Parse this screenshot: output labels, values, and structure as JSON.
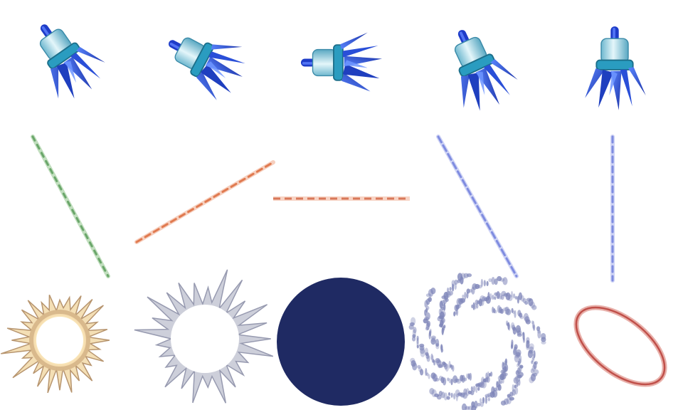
{
  "sprite_sheet": {
    "grid": {
      "columns": 5,
      "rows": 3
    },
    "colors": {
      "background": "#ffffff",
      "blade_dark": "#1f3fbf",
      "blade_light": "#4f7dff",
      "body_light": "#b9e6f0",
      "body_mid": "#7cc8dc",
      "band": "#2a9cc0",
      "ring_dark": "#1c6f8a",
      "nozzle": "#1e3cc8",
      "trail_green": "#8fc48a",
      "trail_orange": "#e07a50",
      "trail_blue": "#7f8ce0",
      "burst_cream": "#fff2c8",
      "burst_tan": "#c8a070",
      "burst_gray": "#a0a4b8",
      "disc_navy": "#1f2a63",
      "dots_blue": "#7d84b8",
      "ring_red": "#c0504a"
    },
    "rows": [
      {
        "name": "projectile-row",
        "cells": [
          {
            "name": "projectile-sprite-tilt-left",
            "rotation_deg": -35
          },
          {
            "name": "projectile-sprite-tilt-down",
            "rotation_deg": -62
          },
          {
            "name": "projectile-sprite-horizontal",
            "rotation_deg": -90
          },
          {
            "name": "projectile-sprite-tilt-right",
            "rotation_deg": -25
          },
          {
            "name": "projectile-sprite-upright",
            "rotation_deg": 0
          }
        ]
      },
      {
        "name": "trail-row",
        "cells": [
          {
            "name": "trail-green-diagonal",
            "color": "trail_green"
          },
          {
            "name": "trail-orange-rising",
            "color": "trail_orange"
          },
          {
            "name": "trail-orange-horizontal",
            "color": "trail_orange"
          },
          {
            "name": "trail-blue-diagonal",
            "color": "trail_blue"
          },
          {
            "name": "trail-blue-vertical",
            "color": "trail_blue"
          }
        ]
      },
      {
        "name": "impact-row",
        "cells": [
          {
            "name": "impact-burst-glow"
          },
          {
            "name": "impact-burst-gray"
          },
          {
            "name": "impact-disc-navy"
          },
          {
            "name": "impact-dot-halo"
          },
          {
            "name": "impact-ring-red"
          }
        ]
      }
    ]
  }
}
